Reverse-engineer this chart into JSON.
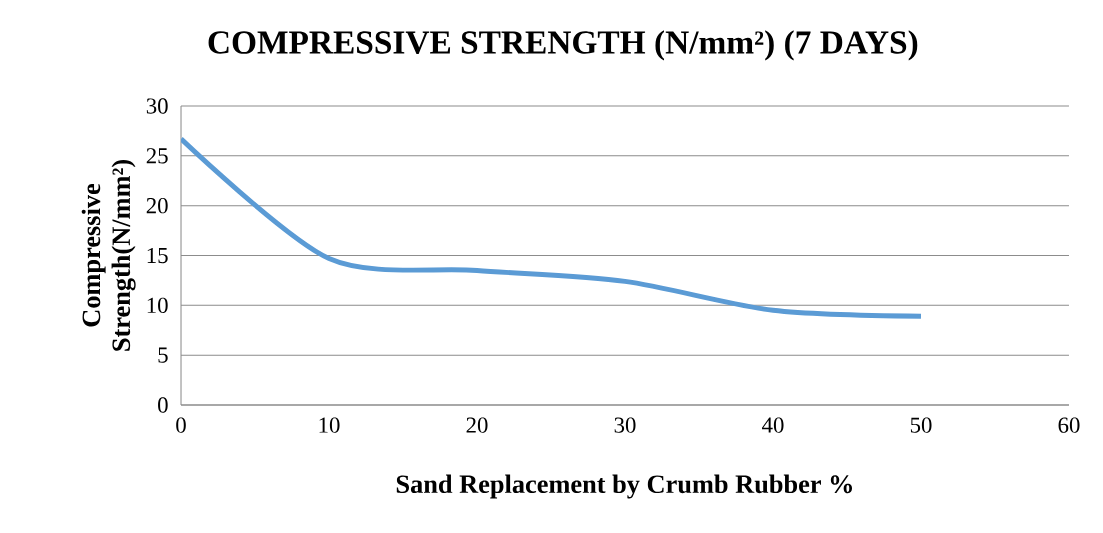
{
  "chart_data": {
    "type": "line",
    "title": "COMPRESSIVE STRENGTH (N/mm²) (7 DAYS)",
    "xlabel": "Sand Replacement by Crumb Rubber %",
    "ylabel": "Compressive Strength(N/mm²)",
    "x": [
      0,
      10,
      20,
      30,
      40,
      50
    ],
    "series": [
      {
        "color": "#5b9bd5",
        "values": [
          26.7,
          14.7,
          13.5,
          12.4,
          9.5,
          8.9
        ]
      }
    ],
    "xlim": [
      0,
      60
    ],
    "xticks": [
      0,
      10,
      20,
      30,
      40,
      50,
      60
    ],
    "ylim": [
      0,
      30
    ],
    "yticks": [
      0,
      5,
      10,
      15,
      20,
      25,
      30
    ],
    "grid": "y",
    "marker": "none",
    "line_style": "solid"
  }
}
